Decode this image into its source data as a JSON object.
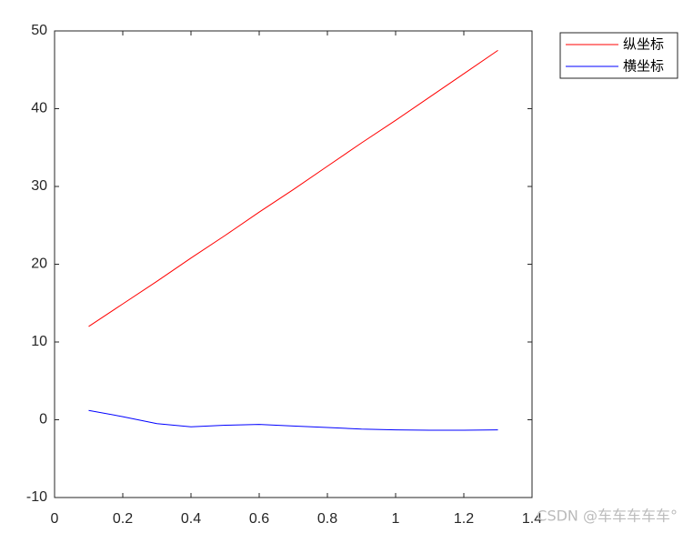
{
  "chart_data": {
    "type": "line",
    "x": [
      0.1,
      0.2,
      0.3,
      0.4,
      0.5,
      0.6,
      0.7,
      0.8,
      0.9,
      1.0,
      1.1,
      1.2,
      1.3
    ],
    "series": [
      {
        "name": "纵坐标",
        "color": "#ff0000",
        "values": [
          12,
          14.9,
          17.8,
          20.8,
          23.7,
          26.7,
          29.6,
          32.6,
          35.6,
          38.5,
          41.5,
          44.5,
          47.5
        ]
      },
      {
        "name": "横坐标",
        "color": "#0000ff",
        "values": [
          1.2,
          0.4,
          -0.5,
          -0.9,
          -0.7,
          -0.6,
          -0.8,
          -1.0,
          -1.2,
          -1.3,
          -1.35,
          -1.35,
          -1.3
        ]
      }
    ],
    "xlim": [
      0,
      1.4
    ],
    "xticks": [
      0,
      0.2,
      0.4,
      0.6,
      0.8,
      1,
      1.2,
      1.4
    ],
    "ylim": [
      -10,
      50
    ],
    "yticks": [
      -10,
      0,
      10,
      20,
      30,
      40,
      50
    ],
    "legend": "outside-top-right",
    "watermark": "CSDN @车车车车车°"
  }
}
